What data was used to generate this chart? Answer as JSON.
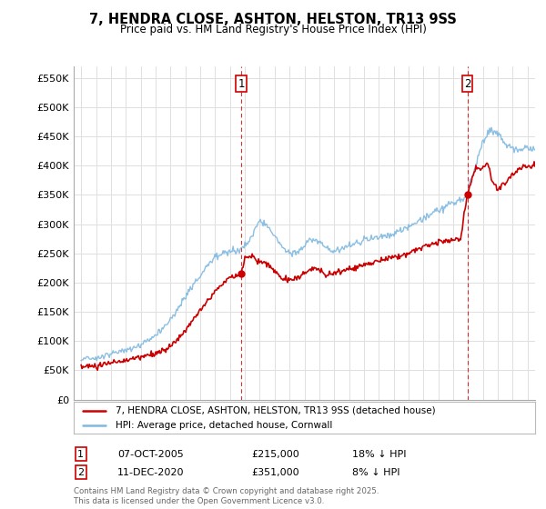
{
  "title": "7, HENDRA CLOSE, ASHTON, HELSTON, TR13 9SS",
  "subtitle": "Price paid vs. HM Land Registry's House Price Index (HPI)",
  "ylabel_ticks": [
    "£0",
    "£50K",
    "£100K",
    "£150K",
    "£200K",
    "£250K",
    "£300K",
    "£350K",
    "£400K",
    "£450K",
    "£500K",
    "£550K"
  ],
  "ytick_values": [
    0,
    50000,
    100000,
    150000,
    200000,
    250000,
    300000,
    350000,
    400000,
    450000,
    500000,
    550000
  ],
  "hpi_color": "#7eb8e0",
  "price_color": "#cc0000",
  "marker1_date_num": 2005.77,
  "marker1_price": 215000,
  "marker1_label": "07-OCT-2005",
  "marker1_text": "£215,000",
  "marker1_pct": "18% ↓ HPI",
  "marker2_date_num": 2020.95,
  "marker2_price": 351000,
  "marker2_label": "11-DEC-2020",
  "marker2_text": "£351,000",
  "marker2_pct": "8% ↓ HPI",
  "xlim_min": 1994.5,
  "xlim_max": 2025.5,
  "ylim_min": 0,
  "ylim_max": 570000,
  "footer": "Contains HM Land Registry data © Crown copyright and database right 2025.\nThis data is licensed under the Open Government Licence v3.0.",
  "legend_line1": "7, HENDRA CLOSE, ASHTON, HELSTON, TR13 9SS (detached house)",
  "legend_line2": "HPI: Average price, detached house, Cornwall"
}
